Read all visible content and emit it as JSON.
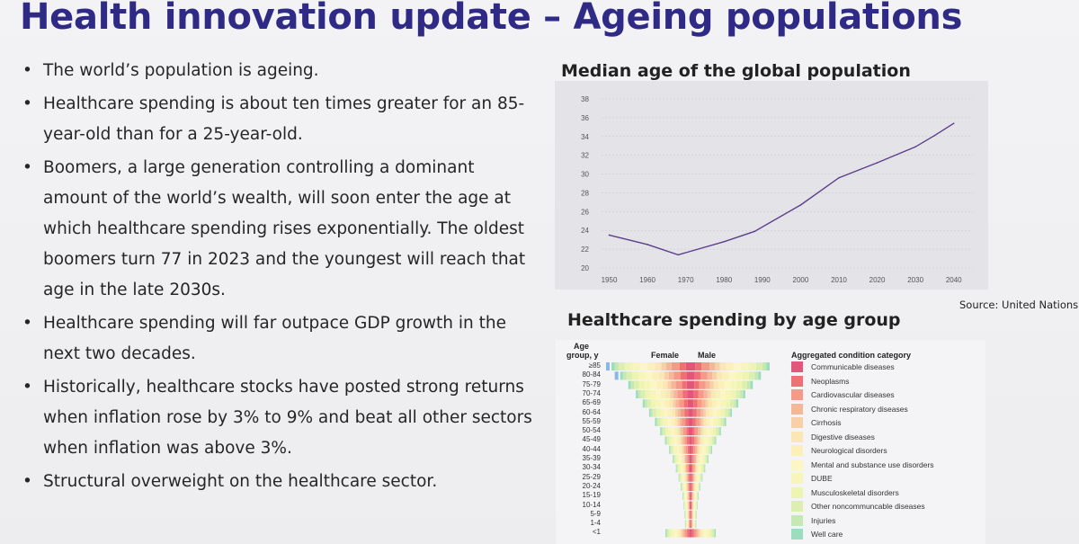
{
  "slide": {
    "title": "Health innovation update – Ageing populations"
  },
  "bullets": [
    "The world’s population is ageing.",
    "Healthcare spending is about ten times greater for an 85-year-old than for a 25-year-old.",
    "Boomers, a large generation controlling a dominant amount of the world’s wealth, will soon enter the age at which healthcare spending rises exponentially. The oldest boomers turn 77 in 2023 and the youngest will reach that age in the late 2030s.",
    "Healthcare spending will far outpace GDP growth in the next two decades.",
    "Historically, healthcare stocks have posted strong returns when inflation rose by 3% to 9% and beat all other sectors when inflation was above 3%.",
    "Structural overweight on the healthcare sector."
  ],
  "bullet_symbol": "•",
  "median_chart": {
    "title": "Median age of the global population",
    "source": "Source: United Nations"
  },
  "chart_data": {
    "type": "line",
    "x": [
      1950,
      1960,
      1968,
      1980,
      1988,
      2000,
      2010,
      2020,
      2030,
      2035,
      2040
    ],
    "values": [
      23.5,
      22.5,
      21.4,
      22.8,
      23.9,
      26.7,
      29.6,
      31.2,
      32.9,
      34.1,
      35.4
    ],
    "xticks": [
      "1950",
      "1960",
      "1970",
      "1980",
      "1990",
      "2000",
      "2010",
      "2020",
      "2030",
      "2040"
    ],
    "yticks": [
      "20",
      "22",
      "24",
      "26",
      "28",
      "30",
      "32",
      "34",
      "36",
      "38"
    ],
    "xlim": [
      1948,
      2045
    ],
    "ylim": [
      20,
      38
    ],
    "grid": true,
    "line_color": "#5a3f8c"
  },
  "spending_chart": {
    "title": "Healthcare spending by age group",
    "age_header": [
      "Age",
      "group, y"
    ],
    "female_label": "Female",
    "male_label": "Male",
    "legend_title": "Aggregated condition category",
    "age_groups": [
      "≥85",
      "80-84",
      "75-79",
      "70-74",
      "65-69",
      "60-64",
      "55-59",
      "50-54",
      "45-49",
      "40-44",
      "35-39",
      "30-34",
      "25-29",
      "20-24",
      "15-19",
      "10-14",
      "5-9",
      "1-4",
      "<1"
    ],
    "legend": [
      {
        "label": "Communicable diseases",
        "color": "#e0577a"
      },
      {
        "label": "Neoplasms",
        "color": "#ee6f74"
      },
      {
        "label": "Cardiovascular diseases",
        "color": "#f39a88"
      },
      {
        "label": "Chronic respiratory diseases",
        "color": "#f6b798"
      },
      {
        "label": "Cirrhosis",
        "color": "#f8cfa6"
      },
      {
        "label": "Digestive diseases",
        "color": "#fbe7b4"
      },
      {
        "label": "Neurological disorders",
        "color": "#fbf0b8"
      },
      {
        "label": "Mental and substance use disorders",
        "color": "#fcf6c4"
      },
      {
        "label": "DUBE",
        "color": "#f7f6b8"
      },
      {
        "label": "Musculoskeletal disorders",
        "color": "#eef5b2"
      },
      {
        "label": "Other noncommuncable diseases",
        "color": "#dcefae"
      },
      {
        "label": "Injuries",
        "color": "#c4e9b3"
      },
      {
        "label": "Well care",
        "color": "#9edcc0"
      }
    ]
  }
}
